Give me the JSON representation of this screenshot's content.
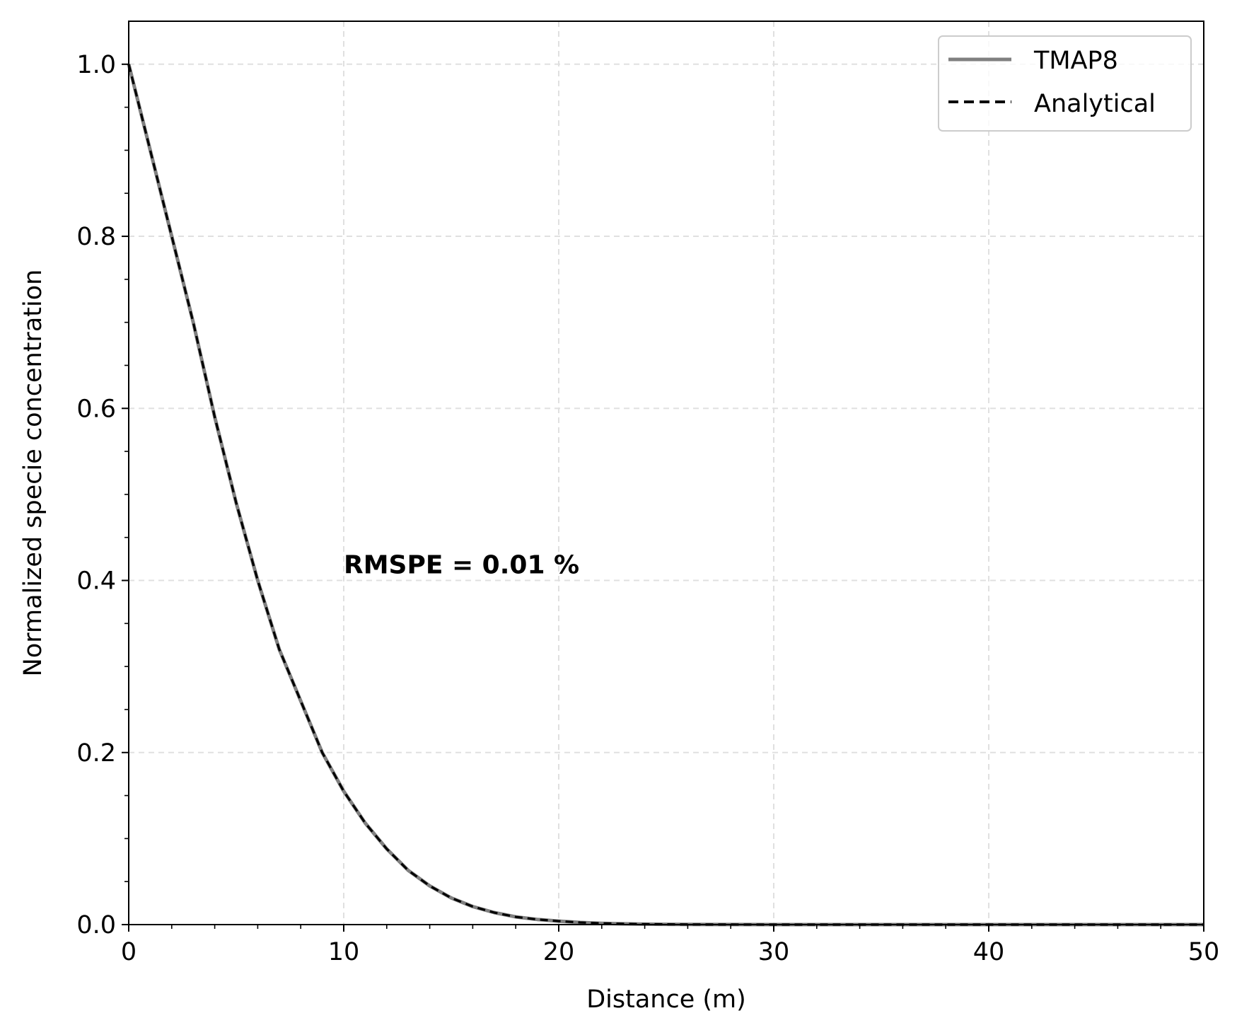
{
  "chart_data": {
    "type": "line",
    "xlabel": "Distance (m)",
    "ylabel": "Normalized specie concentration",
    "xlim": [
      0,
      50
    ],
    "ylim": [
      0,
      1.05
    ],
    "xticks": [
      "0",
      "10",
      "20",
      "30",
      "40",
      "50"
    ],
    "yticks": [
      "0.0",
      "0.2",
      "0.4",
      "0.6",
      "0.8",
      "1.0"
    ],
    "grid": true,
    "legend_position": "top-right",
    "annotation": "RMSPE = 0.01 %",
    "colors": {
      "tmap8": "#808080",
      "analytical": "#000000",
      "grid": "#e0e0e0"
    },
    "series": [
      {
        "name": "TMAP8",
        "style": "solid",
        "x": [
          0,
          1,
          2,
          3,
          4,
          5,
          6,
          7,
          8,
          9,
          10,
          11,
          12,
          13,
          14,
          15,
          16,
          17,
          18,
          19,
          20,
          21,
          22,
          23,
          24,
          25,
          26,
          28,
          30,
          35,
          40,
          45,
          50
        ],
        "y": [
          1.0,
          0.9,
          0.8,
          0.7,
          0.59,
          0.49,
          0.4,
          0.32,
          0.26,
          0.2,
          0.155,
          0.118,
          0.088,
          0.063,
          0.045,
          0.031,
          0.021,
          0.014,
          0.009,
          0.006,
          0.004,
          0.0025,
          0.0015,
          0.0009,
          0.0005,
          0.0003,
          0.0002,
          0.0001,
          3e-05,
          0,
          0,
          0,
          0
        ]
      },
      {
        "name": "Analytical",
        "style": "dashed",
        "x": [
          0,
          1,
          2,
          3,
          4,
          5,
          6,
          7,
          8,
          9,
          10,
          11,
          12,
          13,
          14,
          15,
          16,
          17,
          18,
          19,
          20,
          21,
          22,
          23,
          24,
          25,
          26,
          28,
          30,
          35,
          40,
          45,
          50
        ],
        "y": [
          1.0,
          0.9,
          0.8,
          0.7,
          0.59,
          0.49,
          0.4,
          0.32,
          0.26,
          0.2,
          0.155,
          0.118,
          0.088,
          0.063,
          0.045,
          0.031,
          0.021,
          0.014,
          0.009,
          0.006,
          0.004,
          0.0025,
          0.0015,
          0.0009,
          0.0005,
          0.0003,
          0.0002,
          0.0001,
          3e-05,
          0,
          0,
          0,
          0
        ]
      }
    ]
  }
}
